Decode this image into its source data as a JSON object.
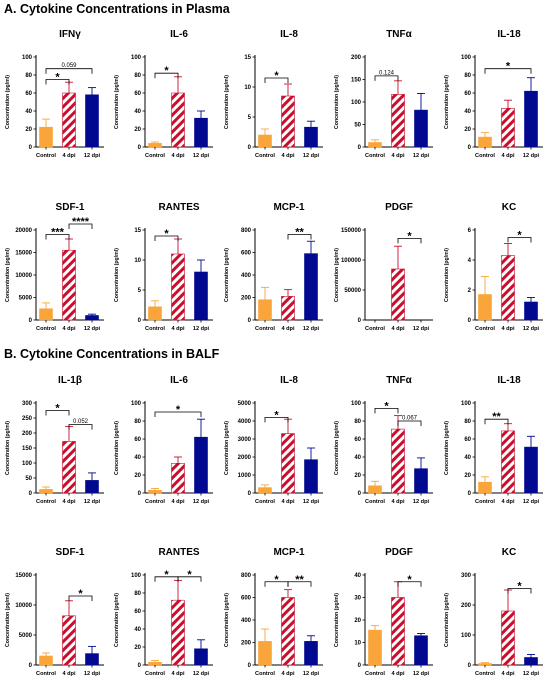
{
  "colors": {
    "control": "#f9a53a",
    "dpi4_stripe": "#c8102e",
    "dpi12": "#00098f",
    "axis": "#000000"
  },
  "sections": [
    {
      "title": "A. Cytokine Concentrations in Plasma",
      "charts": [
        {
          "type": "bar",
          "title": "IFNγ",
          "ylabel": "Concentration (pg/ml)",
          "categories": [
            "Control",
            "4 dpi",
            "12 dpi"
          ],
          "values": [
            22,
            60,
            58
          ],
          "errors": [
            9,
            12,
            8
          ],
          "ylim": [
            0,
            100
          ],
          "yticks": [
            "0",
            "20",
            "40",
            "60",
            "80",
            "100"
          ],
          "annotations": [
            {
              "from": 0,
              "to": 1,
              "label": "*",
              "y": 75
            },
            {
              "from": 0,
              "to": 2,
              "label": "0.059",
              "y": 87
            }
          ]
        },
        {
          "type": "bar",
          "title": "IL-6",
          "ylabel": "Concentration (pg/ml)",
          "categories": [
            "Control",
            "4 dpi",
            "12 dpi"
          ],
          "values": [
            4,
            60,
            32
          ],
          "errors": [
            1.5,
            18,
            8
          ],
          "ylim": [
            0,
            100
          ],
          "yticks": [
            "0",
            "20",
            "40",
            "60",
            "80",
            "100"
          ],
          "annotations": [
            {
              "from": 0,
              "to": 1,
              "label": "*",
              "y": 82
            }
          ]
        },
        {
          "type": "bar",
          "title": "IL-8",
          "ylabel": "Concentration (pg/ml)",
          "categories": [
            "Control",
            "4 dpi",
            "12 dpi"
          ],
          "values": [
            2,
            8.5,
            3.3
          ],
          "errors": [
            1,
            2,
            1
          ],
          "ylim": [
            0,
            15
          ],
          "yticks": [
            "0",
            "5",
            "10",
            "15"
          ],
          "annotations": [
            {
              "from": 0,
              "to": 1,
              "label": "*",
              "y": 11.5
            }
          ]
        },
        {
          "type": "bar",
          "title": "TNFα",
          "ylabel": "Concentration (pg/ml)",
          "categories": [
            "Control",
            "4 dpi",
            "12 dpi"
          ],
          "values": [
            10,
            117,
            82
          ],
          "errors": [
            6,
            30,
            37
          ],
          "ylim": [
            0,
            200
          ],
          "yticks": [
            "0",
            "50",
            "100",
            "150",
            "200"
          ],
          "annotations": [
            {
              "from": 0,
              "to": 1,
              "label": "0.124",
              "y": 158
            }
          ]
        },
        {
          "type": "bar",
          "title": "IL-18",
          "ylabel": "Concentration (pg/ml)",
          "categories": [
            "Control",
            "4 dpi",
            "12 dpi"
          ],
          "values": [
            11,
            43,
            62
          ],
          "errors": [
            5,
            9,
            15
          ],
          "ylim": [
            0,
            100
          ],
          "yticks": [
            "0",
            "20",
            "40",
            "60",
            "80",
            "100"
          ],
          "annotations": [
            {
              "from": 0,
              "to": 2,
              "label": "*",
              "y": 87
            }
          ]
        },
        {
          "type": "bar",
          "title": "SDF-1",
          "ylabel": "Concentration (pg/ml)",
          "categories": [
            "Control",
            "4 dpi",
            "12 dpi"
          ],
          "values": [
            2500,
            15500,
            1000
          ],
          "errors": [
            1300,
            2500,
            300
          ],
          "ylim": [
            0,
            20000
          ],
          "yticks": [
            "0",
            "5000",
            "10000",
            "15000",
            "20000"
          ],
          "annotations": [
            {
              "from": 0,
              "to": 1,
              "label": "***",
              "y": 19000
            },
            {
              "from": 1,
              "to": 2,
              "label": "****",
              "y": 21500
            }
          ]
        },
        {
          "type": "bar",
          "title": "RANTES",
          "ylabel": "Concentration (pg/ml)",
          "categories": [
            "Control",
            "4 dpi",
            "12 dpi"
          ],
          "values": [
            2.2,
            11,
            8
          ],
          "errors": [
            1,
            2.5,
            2
          ],
          "ylim": [
            0,
            15
          ],
          "yticks": [
            "0",
            "5",
            "10",
            "15"
          ],
          "annotations": [
            {
              "from": 0,
              "to": 1,
              "label": "*",
              "y": 14
            }
          ]
        },
        {
          "type": "bar",
          "title": "MCP-1",
          "ylabel": "Concentration (pg/ml)",
          "categories": [
            "Control",
            "4 dpi",
            "12 dpi"
          ],
          "values": [
            180,
            210,
            590
          ],
          "errors": [
            110,
            60,
            110
          ],
          "ylim": [
            0,
            800
          ],
          "yticks": [
            "0",
            "200",
            "400",
            "600",
            "800"
          ],
          "annotations": [
            {
              "from": 1,
              "to": 2,
              "label": "**",
              "y": 760
            }
          ]
        },
        {
          "type": "bar",
          "title": "PDGF",
          "ylabel": "Concentration (pg/ml)",
          "categories": [
            "Control",
            "4 dpi",
            "12 dpi"
          ],
          "values": [
            0,
            85000,
            0
          ],
          "errors": [
            0,
            38000,
            0
          ],
          "ylim": [
            0,
            150000
          ],
          "yticks": [
            "0",
            "50000",
            "100000",
            "150000"
          ],
          "annotations": [
            {
              "from": 1,
              "to": 2,
              "label": "*",
              "y": 136000
            }
          ]
        },
        {
          "type": "bar",
          "title": "KC",
          "ylabel": "Concentration (pg/ml)",
          "categories": [
            "Control",
            "4 dpi",
            "12 dpi"
          ],
          "values": [
            1.7,
            4.3,
            1.2
          ],
          "errors": [
            1.2,
            0.8,
            0.3
          ],
          "ylim": [
            0,
            6
          ],
          "yticks": [
            "0",
            "2",
            "4",
            "6"
          ],
          "annotations": [
            {
              "from": 1,
              "to": 2,
              "label": "*",
              "y": 5.5
            }
          ]
        }
      ]
    },
    {
      "title": "B. Cytokine Concentrations in BALF",
      "charts": [
        {
          "type": "bar",
          "title": "IL-1β",
          "ylabel": "Concentration (pg/ml)",
          "categories": [
            "Control",
            "4 dpi",
            "12 dpi"
          ],
          "values": [
            12,
            172,
            42
          ],
          "errors": [
            8,
            50,
            25
          ],
          "ylim": [
            0,
            300
          ],
          "yticks": [
            "0",
            "50",
            "100",
            "150",
            "200",
            "250",
            "300"
          ],
          "annotations": [
            {
              "from": 0,
              "to": 1,
              "label": "*",
              "y": 275
            },
            {
              "from": 1,
              "to": 2,
              "label": "0.052",
              "y": 228
            }
          ]
        },
        {
          "type": "bar",
          "title": "IL-6",
          "ylabel": "Concentration (pg/ml)",
          "categories": [
            "Control",
            "4 dpi",
            "12 dpi"
          ],
          "values": [
            3,
            33,
            62
          ],
          "errors": [
            2,
            7,
            20
          ],
          "ylim": [
            0,
            100
          ],
          "yticks": [
            "0",
            "20",
            "40",
            "60",
            "80",
            "100"
          ],
          "annotations": [
            {
              "from": 0,
              "to": 2,
              "label": "*",
              "y": 90
            }
          ]
        },
        {
          "type": "bar",
          "title": "IL-8",
          "ylabel": "Concentration (pg/ml)",
          "categories": [
            "Control",
            "4 dpi",
            "12 dpi"
          ],
          "values": [
            300,
            3300,
            1850
          ],
          "errors": [
            150,
            800,
            650
          ],
          "ylim": [
            0,
            5000
          ],
          "yticks": [
            "0",
            "1000",
            "2000",
            "3000",
            "4000",
            "5000"
          ],
          "annotations": [
            {
              "from": 0,
              "to": 1,
              "label": "*",
              "y": 4200
            }
          ]
        },
        {
          "type": "bar",
          "title": "TNFα",
          "ylabel": "Concentration (pg/ml)",
          "categories": [
            "Control",
            "4 dpi",
            "12 dpi"
          ],
          "values": [
            8,
            71,
            27
          ],
          "errors": [
            5,
            15,
            12
          ],
          "ylim": [
            0,
            100
          ],
          "yticks": [
            "0",
            "20",
            "40",
            "60",
            "80",
            "100"
          ],
          "annotations": [
            {
              "from": 0,
              "to": 1,
              "label": "*",
              "y": 94
            },
            {
              "from": 1,
              "to": 2,
              "label": "0.067",
              "y": 80
            }
          ]
        },
        {
          "type": "bar",
          "title": "IL-18",
          "ylabel": "Concentration (pg/ml)",
          "categories": [
            "Control",
            "4 dpi",
            "12 dpi"
          ],
          "values": [
            12,
            69,
            51
          ],
          "errors": [
            6,
            8,
            12
          ],
          "ylim": [
            0,
            100
          ],
          "yticks": [
            "0",
            "20",
            "40",
            "60",
            "80",
            "100"
          ],
          "annotations": [
            {
              "from": 0,
              "to": 1,
              "label": "**",
              "y": 82
            }
          ]
        },
        {
          "type": "bar",
          "title": "SDF-1",
          "ylabel": "Concentration (pg/ml)",
          "categories": [
            "Control",
            "4 dpi",
            "12 dpi"
          ],
          "values": [
            1500,
            8200,
            1900
          ],
          "errors": [
            500,
            2500,
            1200
          ],
          "ylim": [
            0,
            15000
          ],
          "yticks": [
            "0",
            "5000",
            "10000",
            "15000"
          ],
          "annotations": [
            {
              "from": 1,
              "to": 2,
              "label": "*",
              "y": 11500
            }
          ]
        },
        {
          "type": "bar",
          "title": "RANTES",
          "ylabel": "Concentration (pg/ml)",
          "categories": [
            "Control",
            "4 dpi",
            "12 dpi"
          ],
          "values": [
            3,
            72,
            18
          ],
          "errors": [
            2,
            22,
            10
          ],
          "ylim": [
            0,
            100
          ],
          "yticks": [
            "0",
            "20",
            "40",
            "60",
            "80",
            "100"
          ],
          "annotations": [
            {
              "from": 0,
              "to": 1,
              "label": "*",
              "y": 98
            },
            {
              "from": 1,
              "to": 2,
              "label": "*",
              "y": 98
            }
          ]
        },
        {
          "type": "bar",
          "title": "MCP-1",
          "ylabel": "Concentration (pg/ml)",
          "categories": [
            "Control",
            "4 dpi",
            "12 dpi"
          ],
          "values": [
            210,
            600,
            210
          ],
          "errors": [
            110,
            70,
            50
          ],
          "ylim": [
            0,
            800
          ],
          "yticks": [
            "0",
            "200",
            "400",
            "600",
            "800"
          ],
          "annotations": [
            {
              "from": 0,
              "to": 1,
              "label": "*",
              "y": 740
            },
            {
              "from": 1,
              "to": 2,
              "label": "**",
              "y": 740
            }
          ]
        },
        {
          "type": "bar",
          "title": "PDGF",
          "ylabel": "Concentration (pg/ml)",
          "categories": [
            "Control",
            "4 dpi",
            "12 dpi"
          ],
          "values": [
            15.5,
            30,
            13
          ],
          "errors": [
            2,
            7,
            1
          ],
          "ylim": [
            0,
            40
          ],
          "yticks": [
            "0",
            "10",
            "20",
            "30",
            "40"
          ],
          "annotations": [
            {
              "from": 1,
              "to": 2,
              "label": "*",
              "y": 37
            }
          ]
        },
        {
          "type": "bar",
          "title": "KC",
          "ylabel": "Concentration (pg/ml)",
          "categories": [
            "Control",
            "4 dpi",
            "12 dpi"
          ],
          "values": [
            5,
            180,
            25
          ],
          "errors": [
            3,
            70,
            10
          ],
          "ylim": [
            0,
            300
          ],
          "yticks": [
            "0",
            "100",
            "200",
            "300"
          ],
          "annotations": [
            {
              "from": 1,
              "to": 2,
              "label": "*",
              "y": 255
            }
          ]
        }
      ]
    }
  ]
}
